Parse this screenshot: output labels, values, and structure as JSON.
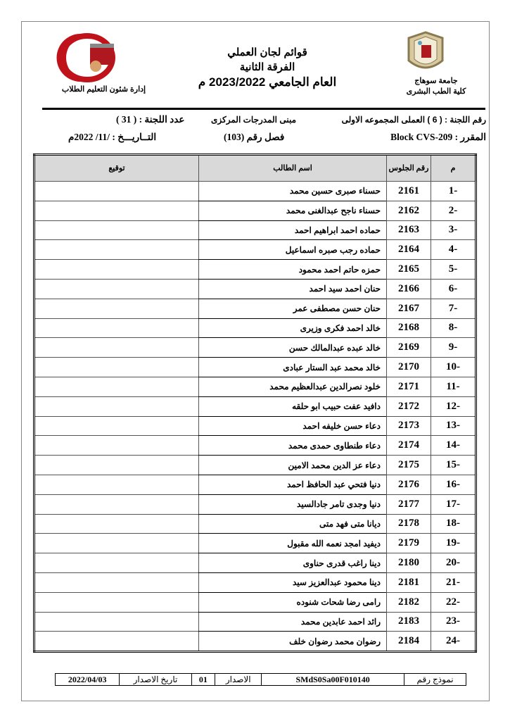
{
  "header": {
    "title_line1": "قوائم لجان العملي",
    "title_line2": "الفرقة الثانية",
    "title_line3": "العام الجامعي 2023/2022 م",
    "university": "جامعة سوهاج",
    "faculty": "كلية الطب البشرى",
    "department": "إدارة شئون التعليم الطلاب",
    "left_logo_text": "جامعة سوهاج كلية الطب"
  },
  "info": {
    "committee_no": "رقم اللجنة : ( 6 ) العملى المجموعه الاولى",
    "building": "مبنى المدرجات المركزى",
    "committee_count": "عدد اللجنة : ( 31 )",
    "course": "المقرر : Block CVS-209",
    "room": "فصل رقم (103)",
    "date": "التــاريـــخ :    /11/ 2022م"
  },
  "table": {
    "headers": {
      "no": "م",
      "seat": "رقم الجلوس",
      "name": "اسم الطالب",
      "signature": "توقيع"
    },
    "rows": [
      {
        "no": "-1",
        "seat": "2161",
        "name": "حسناء صبرى حسين محمد"
      },
      {
        "no": "-2",
        "seat": "2162",
        "name": "حسناء ناجح عبدالغنى محمد"
      },
      {
        "no": "-3",
        "seat": "2163",
        "name": "حماده احمد ابراهيم احمد"
      },
      {
        "no": "-4",
        "seat": "2164",
        "name": "حماده رجب صبره اسماعيل"
      },
      {
        "no": "-5",
        "seat": "2165",
        "name": "حمزه حاتم احمد محمود"
      },
      {
        "no": "-6",
        "seat": "2166",
        "name": "حنان احمد سيد احمد"
      },
      {
        "no": "-7",
        "seat": "2167",
        "name": "حنان حسن مصطفى عمر"
      },
      {
        "no": "-8",
        "seat": "2168",
        "name": "خالد احمد فكرى وزيرى"
      },
      {
        "no": "-9",
        "seat": "2169",
        "name": "خالد عبده عبدالمالك حسن"
      },
      {
        "no": "-10",
        "seat": "2170",
        "name": "خالد محمد عبد الستار عبادى"
      },
      {
        "no": "-11",
        "seat": "2171",
        "name": "خلود نصرالدين عبدالعظيم محمد"
      },
      {
        "no": "-12",
        "seat": "2172",
        "name": "دافيد عفت حبيب ابو حلقه"
      },
      {
        "no": "-13",
        "seat": "2173",
        "name": "دعاء حسن خليفه احمد"
      },
      {
        "no": "-14",
        "seat": "2174",
        "name": "دعاء طنطاوى حمدى محمد"
      },
      {
        "no": "-15",
        "seat": "2175",
        "name": "دعاء عز الدين محمد الامين"
      },
      {
        "no": "-16",
        "seat": "2176",
        "name": "دنيا فتحي عبد الحافظ احمد"
      },
      {
        "no": "-17",
        "seat": "2177",
        "name": "دنيا وجدى تامر جادالسيد"
      },
      {
        "no": "-18",
        "seat": "2178",
        "name": "ديانا متى فهد متى"
      },
      {
        "no": "-19",
        "seat": "2179",
        "name": "ديفيد امجد نعمه الله مقبول"
      },
      {
        "no": "-20",
        "seat": "2180",
        "name": "دينا راغب قدرى حناوى"
      },
      {
        "no": "-21",
        "seat": "2181",
        "name": "دينا محمود عبدالعزيز سيد"
      },
      {
        "no": "-22",
        "seat": "2182",
        "name": "رامى رضا شحات شنوده"
      },
      {
        "no": "-23",
        "seat": "2183",
        "name": "رائد احمد عابدين محمد"
      },
      {
        "no": "-24",
        "seat": "2184",
        "name": "رضوان محمد رضوان خلف"
      }
    ]
  },
  "footer": {
    "form_no_label": "نموذج رقم",
    "form_no": "SMdS0Sa00F010140",
    "version_label": "الاصدار",
    "version": "01",
    "issue_date_label": "تاريخ الاصدار",
    "issue_date": "2022/04/03"
  }
}
